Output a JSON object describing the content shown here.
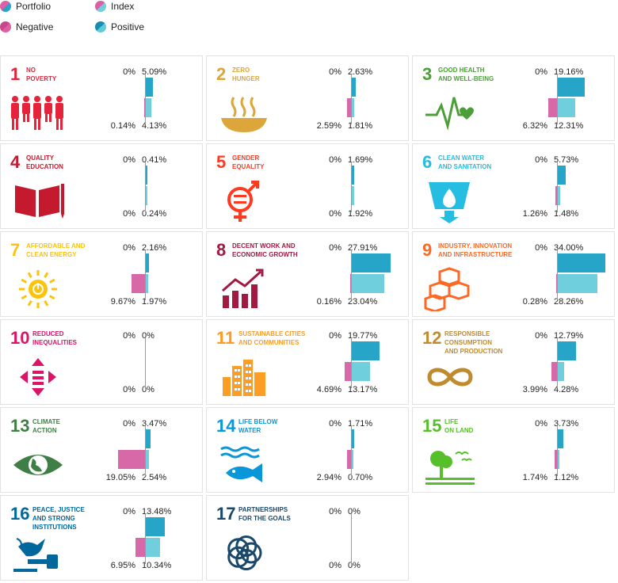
{
  "legend": {
    "portfolio": "Portfolio",
    "index": "Index",
    "negative": "Negative",
    "positive": "Positive"
  },
  "colors": {
    "portfolio_positive": "#26a5c9",
    "index_positive": "#6fcfdd",
    "portfolio_negative": "#b83b7f",
    "index_negative": "#d869a9"
  },
  "chart_data": {
    "type": "bar",
    "scale_max_percent": 34,
    "goals": [
      {
        "num": "1",
        "title": "NO\nPOVERTY",
        "color": "#e5243b",
        "icon": "family-icon",
        "portfolio_neg": "0%",
        "portfolio_pos": "5.09%",
        "index_neg": "0.14%",
        "index_pos": "4.13%",
        "pn": 0,
        "pp": 5.09,
        "in": 0.14,
        "ip": 4.13
      },
      {
        "num": "2",
        "title": "ZERO\nHUNGER",
        "color": "#dda63a",
        "icon": "bowl-icon",
        "portfolio_neg": "0%",
        "portfolio_pos": "2.63%",
        "index_neg": "2.59%",
        "index_pos": "1.81%",
        "pn": 0,
        "pp": 2.63,
        "in": 2.59,
        "ip": 1.81
      },
      {
        "num": "3",
        "title": "GOOD HEALTH\nAND WELL-BEING",
        "color": "#4c9f38",
        "icon": "heartbeat-icon",
        "portfolio_neg": "0%",
        "portfolio_pos": "19.16%",
        "index_neg": "6.32%",
        "index_pos": "12.31%",
        "pn": 0,
        "pp": 19.16,
        "in": 6.32,
        "ip": 12.31
      },
      {
        "num": "4",
        "title": "QUALITY\nEDUCATION",
        "color": "#c5192d",
        "icon": "book-icon",
        "portfolio_neg": "0%",
        "portfolio_pos": "0.41%",
        "index_neg": "0%",
        "index_pos": "0.24%",
        "pn": 0,
        "pp": 0.41,
        "in": 0,
        "ip": 0.24
      },
      {
        "num": "5",
        "title": "GENDER\nEQUALITY",
        "color": "#ff3a21",
        "icon": "gender-icon",
        "portfolio_neg": "0%",
        "portfolio_pos": "1.69%",
        "index_neg": "0%",
        "index_pos": "1.92%",
        "pn": 0,
        "pp": 1.69,
        "in": 0,
        "ip": 1.92
      },
      {
        "num": "6",
        "title": "CLEAN WATER\nAND SANITATION",
        "color": "#26bde2",
        "icon": "water-glass-icon",
        "portfolio_neg": "0%",
        "portfolio_pos": "5.73%",
        "index_neg": "1.26%",
        "index_pos": "1.48%",
        "pn": 0,
        "pp": 5.73,
        "in": 1.26,
        "ip": 1.48
      },
      {
        "num": "7",
        "title": "AFFORDABLE AND\nCLEAN ENERGY",
        "color": "#fcc30b",
        "icon": "sun-power-icon",
        "portfolio_neg": "0%",
        "portfolio_pos": "2.16%",
        "index_neg": "9.67%",
        "index_pos": "1.97%",
        "pn": 0,
        "pp": 2.16,
        "in": 9.67,
        "ip": 1.97
      },
      {
        "num": "8",
        "title": "DECENT WORK AND\nECONOMIC GROWTH",
        "color": "#a21942",
        "icon": "growth-chart-icon",
        "portfolio_neg": "0%",
        "portfolio_pos": "27.91%",
        "index_neg": "0.16%",
        "index_pos": "23.04%",
        "pn": 0,
        "pp": 27.91,
        "in": 0.16,
        "ip": 23.04
      },
      {
        "num": "9",
        "title": "INDUSTRY, INNOVATION\nAND INFRASTRUCTURE",
        "color": "#fd6925",
        "icon": "cubes-icon",
        "portfolio_neg": "0%",
        "portfolio_pos": "34.00%",
        "index_neg": "0.28%",
        "index_pos": "28.26%",
        "pn": 0,
        "pp": 34.0,
        "in": 0.28,
        "ip": 28.26
      },
      {
        "num": "10",
        "title": "REDUCED\nINEQUALITIES",
        "color": "#dd1367",
        "icon": "equality-arrows-icon",
        "portfolio_neg": "0%",
        "portfolio_pos": "0%",
        "index_neg": "0%",
        "index_pos": "0%",
        "pn": 0,
        "pp": 0,
        "in": 0,
        "ip": 0
      },
      {
        "num": "11",
        "title": "SUSTAINABLE CITIES\nAND COMMUNITIES",
        "color": "#fd9d24",
        "icon": "city-icon",
        "portfolio_neg": "0%",
        "portfolio_pos": "19.77%",
        "index_neg": "4.69%",
        "index_pos": "13.17%",
        "pn": 0,
        "pp": 19.77,
        "in": 4.69,
        "ip": 13.17
      },
      {
        "num": "12",
        "title": "RESPONSIBLE\nCONSUMPTION\nAND PRODUCTION",
        "color": "#bf8b2e",
        "icon": "infinity-icon",
        "portfolio_neg": "0%",
        "portfolio_pos": "12.79%",
        "index_neg": "3.99%",
        "index_pos": "4.28%",
        "pn": 0,
        "pp": 12.79,
        "in": 3.99,
        "ip": 4.28
      },
      {
        "num": "13",
        "title": "CLIMATE\nACTION",
        "color": "#3f7e44",
        "icon": "eye-globe-icon",
        "portfolio_neg": "0%",
        "portfolio_pos": "3.47%",
        "index_neg": "19.05%",
        "index_pos": "2.54%",
        "pn": 0,
        "pp": 3.47,
        "in": 19.05,
        "ip": 2.54
      },
      {
        "num": "14",
        "title": "LIFE BELOW\nWATER",
        "color": "#0a97d9",
        "icon": "fish-icon",
        "portfolio_neg": "0%",
        "portfolio_pos": "1.71%",
        "index_neg": "2.94%",
        "index_pos": "0.70%",
        "pn": 0,
        "pp": 1.71,
        "in": 2.94,
        "ip": 0.7
      },
      {
        "num": "15",
        "title": "LIFE\nON LAND",
        "color": "#56c02b",
        "icon": "tree-birds-icon",
        "portfolio_neg": "0%",
        "portfolio_pos": "3.73%",
        "index_neg": "1.74%",
        "index_pos": "1.12%",
        "pn": 0,
        "pp": 3.73,
        "in": 1.74,
        "ip": 1.12
      },
      {
        "num": "16",
        "title": "PEACE, JUSTICE\nAND STRONG\nINSTITUTIONS",
        "color": "#00689d",
        "icon": "dove-gavel-icon",
        "portfolio_neg": "0%",
        "portfolio_pos": "13.48%",
        "index_neg": "6.95%",
        "index_pos": "10.34%",
        "pn": 0,
        "pp": 13.48,
        "in": 6.95,
        "ip": 10.34
      },
      {
        "num": "17",
        "title": "PARTNERSHIPS\nFOR THE GOALS",
        "color": "#19486a",
        "icon": "rings-icon",
        "portfolio_neg": "0%",
        "portfolio_pos": "0%",
        "index_neg": "0%",
        "index_pos": "0%",
        "pn": 0,
        "pp": 0,
        "in": 0,
        "ip": 0
      }
    ]
  }
}
